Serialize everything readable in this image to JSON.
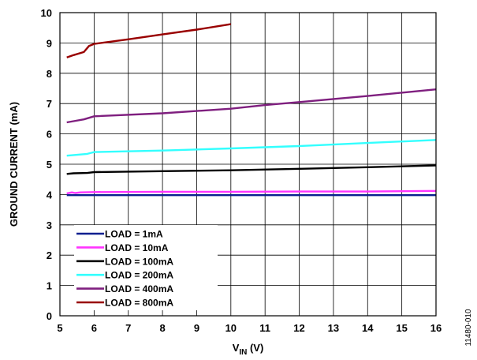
{
  "chart_data": {
    "type": "line",
    "xlabel_main": "V",
    "xlabel_sub": "IN",
    "xlabel_unit": " (V)",
    "ylabel": "GROUND CURRENT (mA)",
    "xlim": [
      5,
      16
    ],
    "ylim": [
      0,
      10
    ],
    "xticks": [
      "5",
      "6",
      "7",
      "8",
      "9",
      "10",
      "11",
      "12",
      "13",
      "14",
      "15",
      "16"
    ],
    "yticks": [
      "0",
      "1",
      "2",
      "3",
      "4",
      "5",
      "6",
      "7",
      "8",
      "9",
      "10"
    ],
    "grid": true,
    "legend_position": "bottom-left",
    "figure_id": "11480-010",
    "series": [
      {
        "name": "LOAD = 1mA",
        "color": "#0a1f8f",
        "points": [
          [
            5.2,
            3.98
          ],
          [
            6,
            3.98
          ],
          [
            8,
            3.98
          ],
          [
            10,
            3.98
          ],
          [
            12,
            3.98
          ],
          [
            14,
            3.98
          ],
          [
            16,
            3.98
          ]
        ]
      },
      {
        "name": "LOAD = 10mA",
        "color": "#ff33ff",
        "points": [
          [
            5.2,
            4.04
          ],
          [
            5.35,
            4.07
          ],
          [
            5.45,
            4.05
          ],
          [
            5.6,
            4.07
          ],
          [
            6,
            4.08
          ],
          [
            8,
            4.09
          ],
          [
            10,
            4.09
          ],
          [
            12,
            4.1
          ],
          [
            14,
            4.1
          ],
          [
            16,
            4.12
          ]
        ]
      },
      {
        "name": "LOAD = 100mA",
        "color": "#000000",
        "points": [
          [
            5.2,
            4.68
          ],
          [
            5.4,
            4.7
          ],
          [
            5.8,
            4.71
          ],
          [
            6,
            4.74
          ],
          [
            8,
            4.77
          ],
          [
            10,
            4.8
          ],
          [
            12,
            4.85
          ],
          [
            14,
            4.9
          ],
          [
            16,
            4.96
          ]
        ]
      },
      {
        "name": "LOAD = 200mA",
        "color": "#33ffff",
        "points": [
          [
            5.2,
            5.28
          ],
          [
            5.5,
            5.31
          ],
          [
            5.8,
            5.34
          ],
          [
            6,
            5.4
          ],
          [
            8,
            5.45
          ],
          [
            10,
            5.52
          ],
          [
            12,
            5.6
          ],
          [
            14,
            5.7
          ],
          [
            16,
            5.8
          ]
        ]
      },
      {
        "name": "LOAD = 400mA",
        "color": "#7f1f7f",
        "points": [
          [
            5.2,
            6.38
          ],
          [
            5.4,
            6.42
          ],
          [
            5.7,
            6.48
          ],
          [
            6,
            6.58
          ],
          [
            8,
            6.68
          ],
          [
            10,
            6.83
          ],
          [
            11,
            6.95
          ],
          [
            12,
            7.05
          ],
          [
            14,
            7.25
          ],
          [
            16,
            7.47
          ]
        ]
      },
      {
        "name": "LOAD = 800mA",
        "color": "#990000",
        "points": [
          [
            5.2,
            8.52
          ],
          [
            5.4,
            8.6
          ],
          [
            5.7,
            8.7
          ],
          [
            5.85,
            8.9
          ],
          [
            6,
            8.97
          ],
          [
            7,
            9.12
          ],
          [
            8,
            9.28
          ],
          [
            9,
            9.44
          ],
          [
            10,
            9.62
          ]
        ]
      }
    ]
  }
}
